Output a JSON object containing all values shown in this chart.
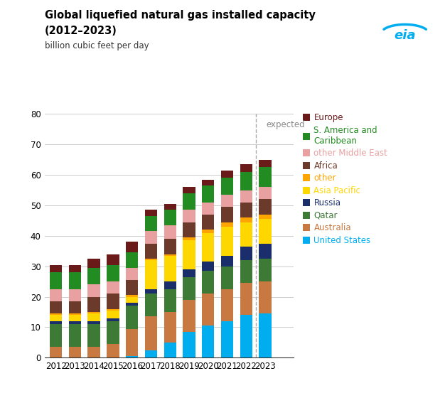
{
  "title_line1": "Global liquefied natural gas installed capacity",
  "title_line2": "(2012–2023)",
  "ylabel": "billion cubic feet per day",
  "years": [
    2012,
    2013,
    2014,
    2015,
    2016,
    2017,
    2018,
    2019,
    2020,
    2021,
    2022,
    2023
  ],
  "ylim": [
    0,
    80
  ],
  "yticks": [
    0,
    10,
    20,
    30,
    40,
    50,
    60,
    70,
    80
  ],
  "series": {
    "United States": [
      0.0,
      0.0,
      0.0,
      0.0,
      0.5,
      2.5,
      5.0,
      8.5,
      10.5,
      12.0,
      14.0,
      14.5
    ],
    "Australia": [
      3.5,
      3.5,
      3.5,
      4.5,
      9.0,
      11.0,
      10.0,
      10.5,
      10.5,
      10.5,
      10.5,
      10.5
    ],
    "Qatar": [
      7.5,
      7.5,
      7.5,
      7.5,
      7.5,
      7.5,
      7.5,
      7.5,
      7.5,
      7.5,
      7.5,
      7.5
    ],
    "Russia": [
      1.0,
      1.0,
      1.0,
      1.0,
      1.0,
      1.5,
      2.5,
      2.5,
      3.0,
      3.5,
      4.5,
      5.0
    ],
    "Asia Pacific": [
      2.0,
      2.0,
      2.5,
      2.5,
      2.0,
      9.5,
      8.5,
      9.5,
      9.5,
      9.5,
      8.0,
      8.0
    ],
    "other": [
      0.5,
      0.5,
      0.5,
      0.5,
      0.5,
      0.5,
      0.5,
      1.0,
      1.0,
      1.5,
      1.5,
      1.5
    ],
    "Africa": [
      4.0,
      4.0,
      5.0,
      5.0,
      5.0,
      5.0,
      5.0,
      5.0,
      5.0,
      5.0,
      5.0,
      5.0
    ],
    "other Middle East": [
      4.0,
      4.0,
      4.0,
      4.0,
      4.0,
      4.0,
      4.5,
      4.0,
      4.0,
      4.0,
      4.0,
      4.0
    ],
    "S. America and\nCaribbean": [
      5.5,
      5.5,
      5.5,
      5.5,
      5.0,
      5.0,
      5.0,
      5.5,
      5.5,
      5.5,
      6.0,
      6.5
    ],
    "Europe": [
      2.5,
      2.5,
      3.0,
      3.5,
      3.5,
      2.0,
      2.0,
      2.0,
      2.0,
      2.5,
      2.5,
      2.5
    ]
  },
  "colors": {
    "United States": "#00AEEF",
    "Australia": "#C87941",
    "Qatar": "#3D7A35",
    "Russia": "#1A2E6B",
    "Asia Pacific": "#FFD700",
    "other": "#FFA500",
    "Africa": "#6B3A2A",
    "other Middle East": "#E8A0A0",
    "S. America and\nCaribbean": "#228B22",
    "Europe": "#6B1A1A"
  },
  "legend_order": [
    "Europe",
    "S. America and\nCaribbean",
    "other Middle East",
    "Africa",
    "other",
    "Asia Pacific",
    "Russia",
    "Qatar",
    "Australia",
    "United States"
  ],
  "legend_text_colors": {
    "Europe": "#6B1A1A",
    "S. America and\nCaribbean": "#228B22",
    "other Middle East": "#E8A0A0",
    "Africa": "#6B3A2A",
    "other": "#FFA500",
    "Asia Pacific": "#FFD700",
    "Russia": "#1A2E6B",
    "Qatar": "#3D7A35",
    "Australia": "#C87941",
    "United States": "#00AEEF"
  },
  "dashed_line_x": 2022.5,
  "expected_text": "expected",
  "bar_width": 0.65,
  "xlim": [
    2011.4,
    2024.5
  ],
  "background_color": "#ffffff"
}
